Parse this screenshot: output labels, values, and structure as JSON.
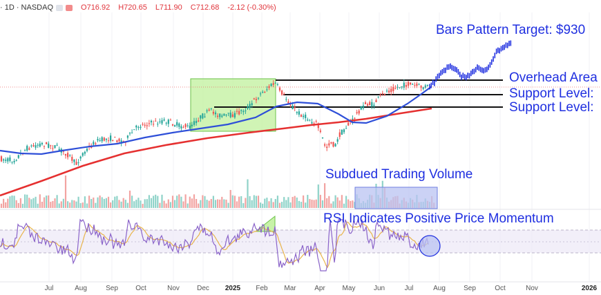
{
  "legend": {
    "symbol": "· 1D · NASDAQ",
    "open": "O716.92",
    "high": "H720.65",
    "low": "L711.90",
    "close": "C712.68",
    "change": "-2.12 (-0.30%)"
  },
  "annotations": {
    "target": "Bars Pattern Target: $930",
    "overhead": "Overhead Area",
    "support1": "Support Level:",
    "support2": "Support Level:",
    "volume": "Subdued Trading Volume",
    "rsi": "RSI Indicates Positive Price Momentum"
  },
  "x_axis": {
    "labels": [
      "Jul",
      "Aug",
      "Sep",
      "Oct",
      "Nov",
      "Dec",
      "2025",
      "Feb",
      "Mar",
      "Apr",
      "May",
      "Jun",
      "Jul",
      "Aug",
      "Sep",
      "Oct",
      "Nov",
      "2026"
    ]
  },
  "colors": {
    "up": "#26a69a",
    "down": "#ef5350",
    "ma50": "#2e4fd8",
    "ma200": "#e53030",
    "annotation": "#1f2fe0",
    "rsi": "#8a63c9",
    "rsi_ma": "#e8b44a",
    "green_box": "#c8f2a8",
    "volume_box": "#b9c3f2"
  },
  "chart_data": {
    "type": "candlestick",
    "price_series_approx": {
      "x": [
        "2024-07",
        "2024-08",
        "2024-09",
        "2024-10",
        "2024-11",
        "2024-12",
        "2025-01",
        "2025-02",
        "2025-03",
        "2025-04",
        "2025-05",
        "2025-06",
        "2025-07",
        "2025-08",
        "2025-09",
        "2025-10"
      ],
      "y": [
        0.08,
        0.05,
        0.16,
        0.24,
        0.33,
        0.38,
        0.49,
        0.82,
        0.58,
        0.08,
        0.4,
        0.55,
        0.7,
        0.88,
        1.04,
        1.28
      ]
    },
    "projection": {
      "label": "Bars Pattern Target: $930"
    },
    "horizontal_levels": [
      "Overhead Area",
      "Support Level:",
      "Support Level:"
    ],
    "moving_averages": [
      {
        "name": "50-day",
        "color": "#2e4fd8"
      },
      {
        "name": "200-day",
        "color": "#e53030"
      }
    ],
    "panes": [
      "price",
      "volume",
      "rsi"
    ],
    "rsi_reference": [
      70,
      50,
      30
    ]
  }
}
